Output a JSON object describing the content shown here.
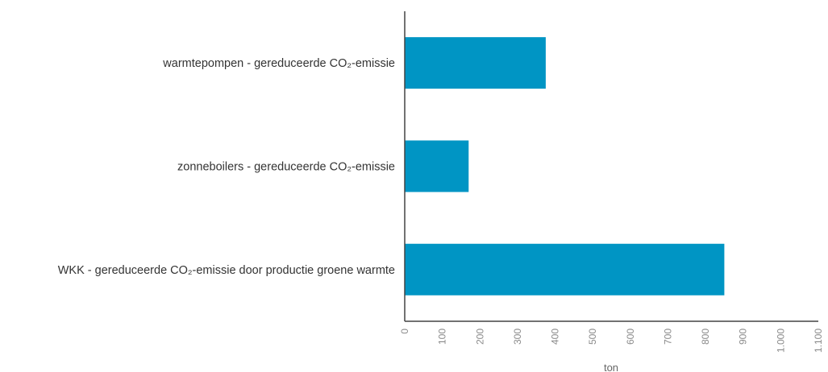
{
  "chart_data": {
    "type": "bar",
    "orientation": "horizontal",
    "categories": [
      "warmtepompen - gereduceerde CO₂-emissie",
      "zonneboilers - gereduceerde CO₂-emissie",
      "WKK - gereduceerde CO₂-emissie door productie groene warmte"
    ],
    "values": [
      375,
      170,
      850
    ],
    "xlabel": "ton",
    "ylabel": "",
    "xlim": [
      0,
      1100
    ],
    "xticks": [
      "0",
      "100",
      "200",
      "300",
      "400",
      "500",
      "600",
      "700",
      "800",
      "900",
      "1.000",
      "1.100"
    ],
    "bar_color": "#0095c4",
    "grid": false,
    "legend": "none"
  }
}
